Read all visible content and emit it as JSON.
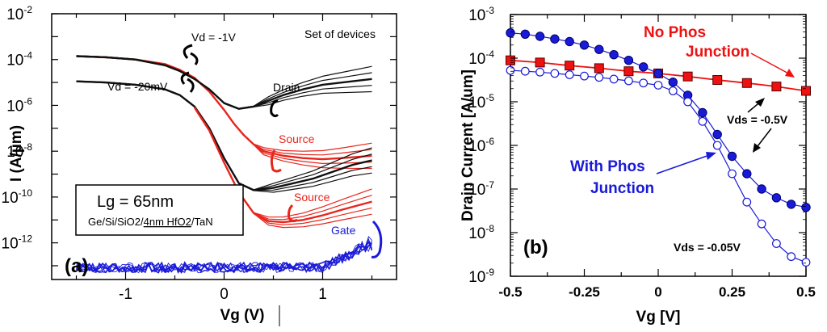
{
  "chart_data": [
    {
      "type": "line",
      "panel_label": "(a)",
      "xlabel": "Vg (V)",
      "ylabel": "I (A/µm)",
      "xlim": [
        -1.75,
        1.75
      ],
      "ylim_log10": [
        -13.6,
        -2
      ],
      "x_ticks": [
        "-1",
        "0",
        "1"
      ],
      "y_tick_exponents": [
        "-2",
        "-4",
        "-6",
        "-8",
        "-10",
        "-12"
      ],
      "y_tick_base": "10",
      "annotations": {
        "set_of_devices": "Set of devices",
        "vd_high": "Vd = -1V",
        "vd_low": "Vd = -20mV",
        "drain": "Drain",
        "source_1": "Source",
        "source_2": "Source",
        "gate": "Gate"
      },
      "inset": {
        "lg": "Lg = 65nm",
        "stack_pre": "Ge/Si/SiO2/",
        "stack_u": "4nm HfO2",
        "stack_post": "/TaN"
      },
      "series": [
        {
          "name": "Drain/Source Vd=-1V (red)",
          "color": "#e8251c",
          "x": [
            -1.5,
            -1.2,
            -0.9,
            -0.6,
            -0.45,
            -0.3,
            -0.15,
            0,
            0.1,
            0.2,
            0.3,
            0.4,
            0.5,
            0.6,
            0.8,
            1.0,
            1.2,
            1.5
          ],
          "log_y": [
            -3.85,
            -3.9,
            -4.0,
            -4.2,
            -4.45,
            -4.8,
            -5.4,
            -6.2,
            -6.8,
            -7.3,
            -7.7,
            -8.0,
            -8.1,
            -8.2,
            -8.3,
            -8.35,
            -8.3,
            -8.2
          ]
        },
        {
          "name": "Drain Vd=-1V (black)",
          "color": "#111111",
          "x": [
            -1.5,
            -1.2,
            -0.9,
            -0.6,
            -0.45,
            -0.3,
            -0.15,
            0,
            0.15,
            0.3,
            0.45,
            0.6,
            0.8,
            1.0,
            1.2,
            1.5
          ],
          "log_y": [
            -3.85,
            -3.9,
            -4.0,
            -4.25,
            -4.5,
            -4.85,
            -5.3,
            -5.9,
            -6.15,
            -6.05,
            -5.8,
            -5.55,
            -5.3,
            -5.1,
            -5.0,
            -4.85
          ]
        },
        {
          "name": "Drain/Source Vd=-20mV (black)",
          "color": "#111111",
          "x": [
            -1.5,
            -1.2,
            -0.9,
            -0.6,
            -0.45,
            -0.3,
            -0.15,
            0,
            0.15,
            0.3,
            0.5,
            0.7,
            0.9,
            1.1,
            1.3,
            1.5
          ],
          "log_y": [
            -4.95,
            -5.0,
            -5.1,
            -5.3,
            -5.55,
            -6.05,
            -7.0,
            -8.3,
            -9.4,
            -9.7,
            -9.6,
            -9.4,
            -9.2,
            -8.9,
            -8.6,
            -8.4
          ]
        },
        {
          "name": "Source Vd=-20mV (red)",
          "color": "#e8251c",
          "x": [
            -0.3,
            -0.15,
            0,
            0.15,
            0.3,
            0.45,
            0.6,
            0.8,
            1.0,
            1.2,
            1.5
          ],
          "log_y": [
            -6.1,
            -7.1,
            -8.5,
            -9.8,
            -10.7,
            -11.05,
            -11.1,
            -11.0,
            -10.8,
            -10.55,
            -10.2
          ]
        }
      ]
    },
    {
      "type": "line",
      "panel_label": "(b)",
      "xlabel": "Vg [V]",
      "ylabel": "Drain Current [A/um]",
      "xlim": [
        -0.5,
        0.5
      ],
      "ylim_log10": [
        -9,
        -3
      ],
      "x_ticks": [
        "-0.5",
        "-0.25",
        "0",
        "0.25",
        "0.5"
      ],
      "y_tick_exponents": [
        "-3",
        "-4",
        "-5",
        "-6",
        "-7",
        "-8",
        "-9"
      ],
      "y_tick_base": "10",
      "annotations": {
        "no_phos_1": "No Phos",
        "no_phos_2": "Junction",
        "with_phos_1": "With Phos",
        "with_phos_2": "Junction",
        "vds_high": "Vds = -0.5V",
        "vds_low": "Vds = -0.05V"
      },
      "series": [
        {
          "name": "No Phos Junction",
          "color": "#ee1111",
          "marker": "square",
          "x": [
            -0.5,
            -0.4,
            -0.3,
            -0.2,
            -0.1,
            0,
            0.1,
            0.2,
            0.3,
            0.4,
            0.5
          ],
          "log_y": [
            -4.05,
            -4.1,
            -4.17,
            -4.23,
            -4.3,
            -4.35,
            -4.42,
            -4.5,
            -4.57,
            -4.65,
            -4.75
          ]
        },
        {
          "name": "With Phos Junction, Vds = -0.5V",
          "color": "#1a1ad9",
          "marker": "filled-circle",
          "x": [
            -0.5,
            -0.45,
            -0.4,
            -0.35,
            -0.3,
            -0.25,
            -0.2,
            -0.15,
            -0.1,
            -0.05,
            0,
            0.05,
            0.1,
            0.15,
            0.2,
            0.25,
            0.3,
            0.35,
            0.4,
            0.45,
            0.5
          ],
          "log_y": [
            -3.42,
            -3.45,
            -3.5,
            -3.56,
            -3.62,
            -3.7,
            -3.8,
            -3.92,
            -4.05,
            -4.2,
            -4.35,
            -4.55,
            -4.85,
            -5.25,
            -5.75,
            -6.25,
            -6.65,
            -7.0,
            -7.2,
            -7.35,
            -7.42
          ]
        },
        {
          "name": "With Phos Junction, Vds = -0.05V",
          "color": "#1a1ad9",
          "marker": "open-circle",
          "x": [
            -0.5,
            -0.45,
            -0.4,
            -0.35,
            -0.3,
            -0.25,
            -0.2,
            -0.15,
            -0.1,
            -0.05,
            0,
            0.05,
            0.1,
            0.15,
            0.2,
            0.25,
            0.3,
            0.35,
            0.4,
            0.45,
            0.5
          ],
          "log_y": [
            -4.28,
            -4.3,
            -4.32,
            -4.35,
            -4.38,
            -4.41,
            -4.44,
            -4.48,
            -4.52,
            -4.57,
            -4.62,
            -4.75,
            -5.0,
            -5.45,
            -6.0,
            -6.65,
            -7.3,
            -7.8,
            -8.25,
            -8.55,
            -8.68
          ]
        }
      ]
    }
  ]
}
